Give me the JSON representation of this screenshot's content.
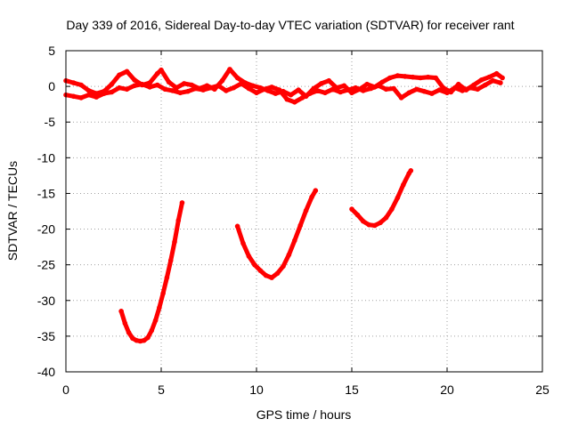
{
  "chart_data": {
    "type": "line",
    "title": "Day 339 of 2016, Sidereal Day-to-day VTEC variation (SDTVAR) for receiver rant",
    "xlabel": "GPS time / hours",
    "ylabel": "SDTVAR / TECUs",
    "xlim": [
      0,
      25
    ],
    "ylim": [
      -40,
      5
    ],
    "xticks": [
      0,
      5,
      10,
      15,
      20,
      25
    ],
    "yticks": [
      -40,
      -35,
      -30,
      -25,
      -20,
      -15,
      -10,
      -5,
      0,
      5
    ],
    "grid": true,
    "legend": "none",
    "color": "#ff0000",
    "series": [
      {
        "name": "near-zero band A",
        "x": [
          0,
          0.4,
          0.8,
          1.2,
          1.6,
          2.0,
          2.4,
          2.8,
          3.2,
          3.6,
          4.0,
          4.4,
          4.8,
          5.0,
          5.4,
          5.8,
          6.2,
          6.6,
          7.0,
          7.4,
          7.8,
          8.2,
          8.6,
          9.0,
          9.4,
          9.8,
          10.2,
          10.6,
          11.0,
          11.4,
          11.8,
          12.2,
          12.6,
          13.0,
          13.4,
          13.8,
          14.2,
          14.6,
          15.0,
          15.4,
          15.8,
          16.2,
          16.6,
          17.0,
          17.4,
          17.8,
          18.2,
          18.6,
          19.0,
          19.4,
          19.8,
          20.2,
          20.6,
          21.0,
          21.4,
          21.8,
          22.2,
          22.6,
          22.9
        ],
        "values": [
          0.8,
          0.5,
          0.2,
          -0.6,
          -1.0,
          -0.7,
          0.3,
          1.6,
          2.1,
          0.9,
          0.2,
          0.5,
          1.8,
          2.3,
          0.6,
          -0.2,
          0.4,
          0.2,
          -0.3,
          0.1,
          -0.4,
          0.8,
          2.4,
          1.2,
          0.5,
          0.1,
          -0.2,
          -0.6,
          -1.0,
          -0.7,
          -1.2,
          -0.5,
          -1.4,
          -0.3,
          0.4,
          0.8,
          -0.2,
          0.1,
          -0.9,
          -0.4,
          0.3,
          -0.1,
          0.6,
          1.2,
          1.5,
          1.4,
          1.3,
          1.2,
          1.3,
          1.2,
          -0.2,
          -0.8,
          0.3,
          -0.5,
          0.2,
          0.9,
          1.3,
          1.8,
          1.2
        ]
      },
      {
        "name": "near-zero band B",
        "x": [
          0,
          0.4,
          0.8,
          1.2,
          1.6,
          2.0,
          2.4,
          2.8,
          3.2,
          3.6,
          4.0,
          4.4,
          4.8,
          5.2,
          5.6,
          6.0,
          6.4,
          6.8,
          7.2,
          7.6,
          8.0,
          8.4,
          8.8,
          9.2,
          9.6,
          10.0,
          10.4,
          10.8,
          11.2,
          11.6,
          12.0,
          12.4,
          12.8,
          13.2,
          13.6,
          14.0,
          14.4,
          14.8,
          15.2,
          15.6,
          16.0,
          16.4,
          16.8,
          17.2,
          17.6,
          18.0,
          18.4,
          18.8,
          19.2,
          19.6,
          20.0,
          20.4,
          20.8,
          21.2,
          21.6,
          22.0,
          22.4,
          22.8
        ],
        "values": [
          -1.2,
          -1.4,
          -1.6,
          -1.2,
          -1.5,
          -1.0,
          -0.8,
          -0.2,
          -0.4,
          0.1,
          0.3,
          -0.1,
          0.2,
          -0.4,
          -0.6,
          -0.9,
          -0.7,
          -0.3,
          -0.5,
          -0.2,
          0.1,
          -0.6,
          -0.2,
          0.4,
          -0.3,
          -0.9,
          -0.4,
          -0.1,
          -0.5,
          -1.8,
          -2.2,
          -1.6,
          -1.0,
          -0.6,
          -0.9,
          -0.4,
          -0.8,
          -0.5,
          -0.2,
          -0.6,
          -0.3,
          0.1,
          -0.4,
          -0.3,
          -1.6,
          -0.9,
          -0.4,
          -0.7,
          -1.0,
          -0.5,
          -0.9,
          -0.2,
          -0.6,
          -0.2,
          -0.4,
          0.2,
          0.8,
          0.5
        ]
      },
      {
        "name": "arc 1",
        "x": [
          2.9,
          3.1,
          3.3,
          3.5,
          3.7,
          3.9,
          4.1,
          4.3,
          4.5,
          4.7,
          4.9,
          5.1,
          5.3,
          5.5,
          5.7,
          5.9,
          6.1
        ],
        "values": [
          -31.5,
          -33.2,
          -34.5,
          -35.3,
          -35.6,
          -35.7,
          -35.6,
          -35.2,
          -34.2,
          -32.8,
          -31.0,
          -29.0,
          -26.8,
          -24.4,
          -21.8,
          -18.8,
          -16.3
        ]
      },
      {
        "name": "arc 2",
        "x": [
          9.0,
          9.3,
          9.6,
          9.9,
          10.2,
          10.5,
          10.8,
          11.1,
          11.4,
          11.7,
          12.0,
          12.3,
          12.6,
          12.9,
          13.1
        ],
        "values": [
          -19.6,
          -22.0,
          -23.8,
          -25.0,
          -25.8,
          -26.5,
          -26.8,
          -26.2,
          -25.2,
          -23.6,
          -21.6,
          -19.5,
          -17.4,
          -15.5,
          -14.6
        ]
      },
      {
        "name": "arc 3",
        "x": [
          15.0,
          15.3,
          15.6,
          15.9,
          16.2,
          16.5,
          16.8,
          17.1,
          17.4,
          17.7,
          18.0,
          18.1
        ],
        "values": [
          -17.2,
          -18.0,
          -18.9,
          -19.4,
          -19.5,
          -19.1,
          -18.4,
          -17.2,
          -15.6,
          -13.8,
          -12.2,
          -11.8
        ]
      }
    ]
  }
}
